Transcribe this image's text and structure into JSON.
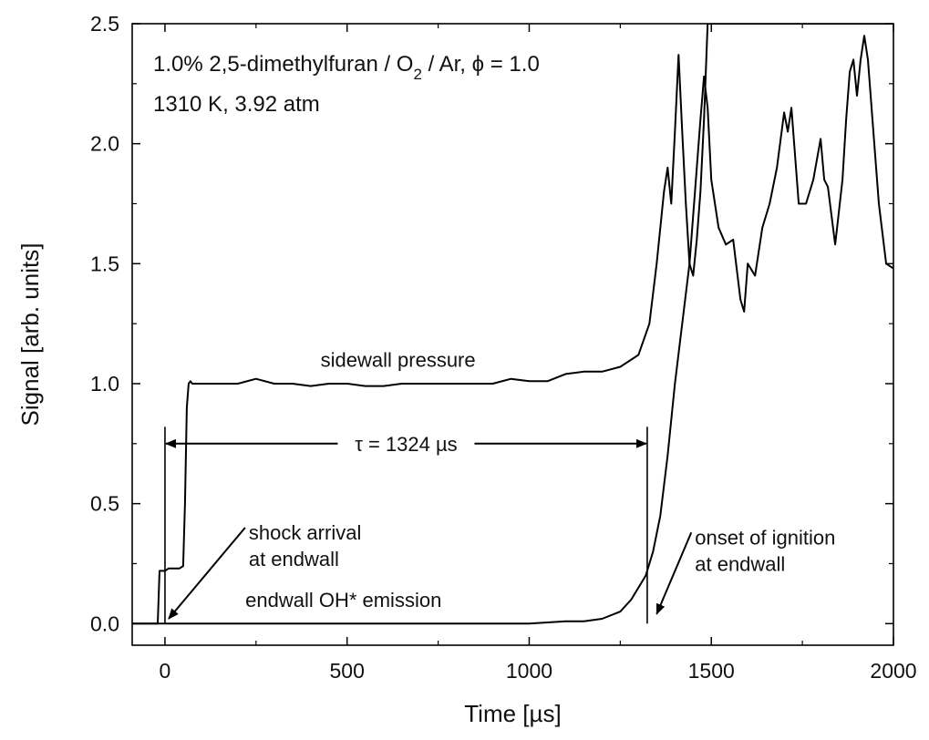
{
  "chart_data": {
    "type": "line",
    "title": "",
    "info_line1_prefix": "1.0% 2,5-dimethylfuran / O",
    "info_line1_sub": "2",
    "info_line1_suffix": " / Ar, ϕ = 1.0",
    "info_line2": "1310 K, 3.92 atm",
    "xlabel": "Time [µs]",
    "ylabel": "Signal [arb. units]",
    "xlim": [
      -90,
      2000
    ],
    "ylim": [
      -0.09,
      2.5
    ],
    "xticks": [
      0,
      500,
      1000,
      1500,
      2000
    ],
    "xtick_labels": [
      "0",
      "500",
      "1000",
      "1500",
      "2000"
    ],
    "yticks": [
      0.0,
      0.5,
      1.0,
      1.5,
      2.0,
      2.5
    ],
    "ytick_labels": [
      "0.0",
      "0.5",
      "1.0",
      "1.5",
      "2.0",
      "2.5"
    ],
    "grid": false,
    "series": [
      {
        "name": "sidewall pressure",
        "color": "#000000",
        "x": [
          -90,
          -20,
          -15,
          -10,
          0,
          10,
          20,
          30,
          40,
          50,
          55,
          60,
          65,
          70,
          75,
          100,
          150,
          200,
          250,
          300,
          350,
          400,
          450,
          500,
          550,
          600,
          650,
          700,
          750,
          800,
          850,
          900,
          950,
          1000,
          1050,
          1100,
          1150,
          1200,
          1250,
          1300,
          1330,
          1350,
          1370,
          1380,
          1390,
          1400,
          1410,
          1420,
          1430,
          1440,
          1450,
          1460,
          1470,
          1480,
          1490,
          1500,
          1530,
          1560,
          1580,
          1600,
          1620,
          1640,
          1660,
          1680,
          1700,
          1710,
          1720,
          1740,
          1760,
          1780,
          1800,
          1820,
          1840,
          1860,
          1880,
          1900,
          1920,
          1940,
          1960,
          1980,
          2000
        ],
        "y": [
          0.0,
          0.0,
          0.22,
          0.22,
          0.22,
          0.23,
          0.23,
          0.23,
          0.23,
          0.24,
          0.5,
          0.9,
          1.0,
          1.01,
          1.0,
          1.0,
          1.0,
          1.0,
          1.02,
          1.0,
          1.0,
          0.99,
          1.0,
          1.0,
          0.99,
          0.99,
          1.0,
          1.0,
          1.0,
          1.0,
          1.0,
          1.0,
          1.02,
          1.01,
          1.01,
          1.04,
          1.05,
          1.05,
          1.07,
          1.12,
          1.25,
          1.5,
          1.8,
          1.9,
          1.75,
          2.05,
          2.37,
          2.05,
          1.75,
          1.5,
          1.45,
          1.6,
          1.8,
          2.1,
          2.5,
          2.5,
          2.5,
          2.5,
          2.5,
          2.5,
          2.5,
          2.5,
          2.5,
          2.5,
          2.5,
          2.5,
          2.5,
          2.5,
          2.5,
          2.5,
          2.5,
          2.5,
          2.5,
          2.5,
          2.5,
          2.5,
          2.5,
          2.5,
          2.5,
          2.5,
          2.5
        ]
      },
      {
        "name": "endwall OH* emission",
        "color": "#000000",
        "x": [
          -90,
          900,
          1000,
          1100,
          1150,
          1200,
          1250,
          1280,
          1300,
          1320,
          1340,
          1360,
          1380,
          1400,
          1420,
          1440,
          1450,
          1460,
          1470,
          1480,
          1490,
          1500,
          1520,
          1540,
          1560,
          1580,
          1590,
          1600,
          1620,
          1640,
          1660,
          1680,
          1700,
          1710,
          1720,
          1740,
          1760,
          1780,
          1800,
          1810,
          1820,
          1840,
          1860,
          1870,
          1880,
          1890,
          1900,
          1910,
          1920,
          1930,
          1940,
          1960,
          1980,
          2000
        ],
        "y": [
          0.0,
          0.0,
          0.0,
          0.01,
          0.01,
          0.02,
          0.05,
          0.1,
          0.15,
          0.2,
          0.3,
          0.45,
          0.7,
          1.0,
          1.25,
          1.5,
          1.7,
          1.9,
          2.1,
          2.28,
          2.15,
          1.85,
          1.65,
          1.58,
          1.6,
          1.35,
          1.3,
          1.5,
          1.45,
          1.65,
          1.75,
          1.9,
          2.13,
          2.05,
          2.15,
          1.75,
          1.75,
          1.85,
          2.02,
          1.85,
          1.82,
          1.58,
          1.85,
          2.1,
          2.3,
          2.35,
          2.2,
          2.35,
          2.45,
          2.35,
          2.15,
          1.75,
          1.5,
          1.48
        ]
      }
    ],
    "annotations": [
      {
        "name": "label-sidewall-pressure",
        "text": "sidewall pressure",
        "x": 640,
        "y": 1.07
      },
      {
        "name": "label-endwall-oh",
        "text": "endwall OH* emission",
        "x": 490,
        "y": 0.07
      },
      {
        "name": "label-shock-arrival-1",
        "text": "shock arrival",
        "x": 230,
        "y": 0.35
      },
      {
        "name": "label-shock-arrival-2",
        "text": "at endwall",
        "x": 230,
        "y": 0.24
      },
      {
        "name": "label-onset-1",
        "text": "onset of ignition",
        "x": 1455,
        "y": 0.33
      },
      {
        "name": "label-onset-2",
        "text": "at endwall",
        "x": 1455,
        "y": 0.22
      }
    ],
    "tau": {
      "label": "τ = 1324 µs",
      "start": 0,
      "end": 1324,
      "y": 0.75
    },
    "shock_line": {
      "x": 0,
      "y_top": 0.82
    },
    "ignition_line": {
      "x": 1324,
      "y_top": 0.82
    },
    "arrows": [
      {
        "name": "shock-arrival-arrow",
        "from": [
          220,
          0.4
        ],
        "to": [
          10,
          0.02
        ]
      },
      {
        "name": "onset-ignition-arrow",
        "from": [
          1445,
          0.38
        ],
        "to": [
          1350,
          0.04
        ]
      }
    ]
  }
}
